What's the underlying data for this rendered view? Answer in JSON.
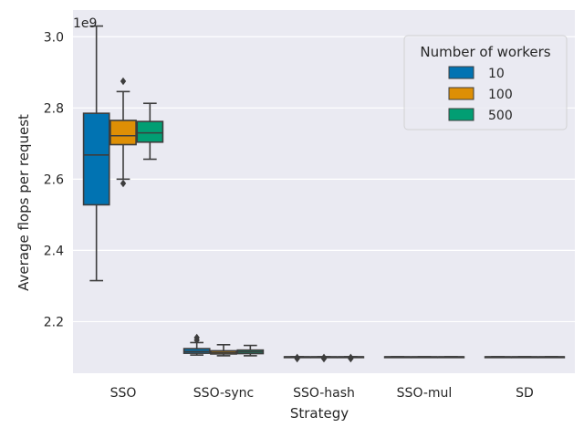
{
  "chart_data": {
    "type": "boxplot",
    "title": "",
    "xlabel": "Strategy",
    "ylabel": "Average flops per request",
    "offset_text": "1e9",
    "y_scale_factor": 1000000000,
    "ylim": [
      2.055,
      3.075
    ],
    "yticks": [
      2.2,
      2.4,
      2.6,
      2.8,
      3.0
    ],
    "ytick_labels": [
      "2.2",
      "2.4",
      "2.6",
      "2.8",
      "3.0"
    ],
    "categories": [
      "SSO",
      "SSO-sync",
      "SSO-hash",
      "SSO-mul",
      "SD"
    ],
    "legend": {
      "title": "Number of workers",
      "position": "upper right"
    },
    "series": [
      {
        "name": "10",
        "color": "#0173b2",
        "boxes": [
          {
            "whislo": 2.315,
            "q1": 2.528,
            "med": 2.668,
            "q3": 2.785,
            "whishi": 3.03,
            "fliers": []
          },
          {
            "whislo": 2.106,
            "q1": 2.111,
            "med": 2.116,
            "q3": 2.124,
            "whishi": 2.141,
            "fliers": [
              2.148,
              2.155
            ]
          },
          {
            "whislo": 2.101,
            "q1": 2.101,
            "med": 2.101,
            "q3": 2.101,
            "whishi": 2.101,
            "fliers": [
              2.096,
              2.099
            ]
          },
          {
            "whislo": 2.101,
            "q1": 2.101,
            "med": 2.101,
            "q3": 2.101,
            "whishi": 2.101,
            "fliers": []
          },
          {
            "whislo": 2.101,
            "q1": 2.101,
            "med": 2.101,
            "q3": 2.101,
            "whishi": 2.101,
            "fliers": []
          }
        ]
      },
      {
        "name": "100",
        "color": "#de8f05",
        "boxes": [
          {
            "whislo": 2.6,
            "q1": 2.697,
            "med": 2.722,
            "q3": 2.765,
            "whishi": 2.846,
            "fliers": [
              2.588,
              2.875
            ]
          },
          {
            "whislo": 2.104,
            "q1": 2.109,
            "med": 2.113,
            "q3": 2.118,
            "whishi": 2.135,
            "fliers": []
          },
          {
            "whislo": 2.101,
            "q1": 2.101,
            "med": 2.101,
            "q3": 2.101,
            "whishi": 2.101,
            "fliers": [
              2.096,
              2.099
            ]
          },
          {
            "whislo": 2.101,
            "q1": 2.101,
            "med": 2.101,
            "q3": 2.101,
            "whishi": 2.101,
            "fliers": []
          },
          {
            "whislo": 2.101,
            "q1": 2.101,
            "med": 2.101,
            "q3": 2.101,
            "whishi": 2.101,
            "fliers": []
          }
        ]
      },
      {
        "name": "500",
        "color": "#029e73",
        "boxes": [
          {
            "whislo": 2.656,
            "q1": 2.704,
            "med": 2.73,
            "q3": 2.762,
            "whishi": 2.813,
            "fliers": []
          },
          {
            "whislo": 2.104,
            "q1": 2.11,
            "med": 2.115,
            "q3": 2.12,
            "whishi": 2.133,
            "fliers": []
          },
          {
            "whislo": 2.101,
            "q1": 2.101,
            "med": 2.101,
            "q3": 2.101,
            "whishi": 2.101,
            "fliers": [
              2.096,
              2.099
            ]
          },
          {
            "whislo": 2.101,
            "q1": 2.101,
            "med": 2.101,
            "q3": 2.101,
            "whishi": 2.101,
            "fliers": []
          },
          {
            "whislo": 2.101,
            "q1": 2.101,
            "med": 2.101,
            "q3": 2.101,
            "whishi": 2.101,
            "fliers": []
          }
        ]
      }
    ],
    "colors": {
      "background": "#eaeaf2",
      "grid": "#ffffff",
      "box_edge": "#3d3d3d"
    }
  }
}
